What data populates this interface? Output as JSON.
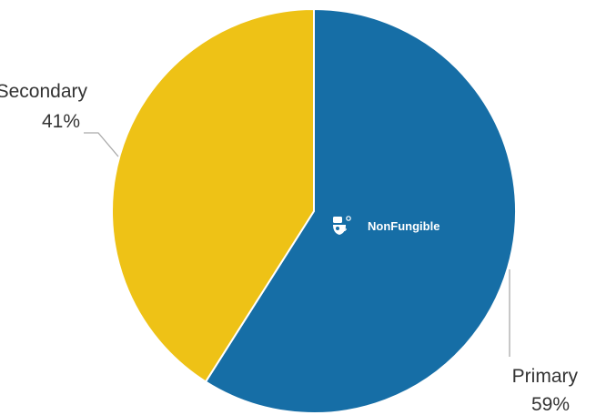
{
  "chart_data": {
    "type": "pie",
    "title": "",
    "slices": [
      {
        "label": "Primary",
        "value": 59,
        "display": "59%",
        "color": "#166ea6"
      },
      {
        "label": "Secondary",
        "value": 41,
        "display": "41%",
        "color": "#eec216"
      }
    ],
    "slice_border_color": "#ffffff",
    "leader_line_color": "#aaaaaa"
  },
  "watermark": {
    "text": "NonFungible",
    "icon": "nonfungible-logo-icon"
  }
}
